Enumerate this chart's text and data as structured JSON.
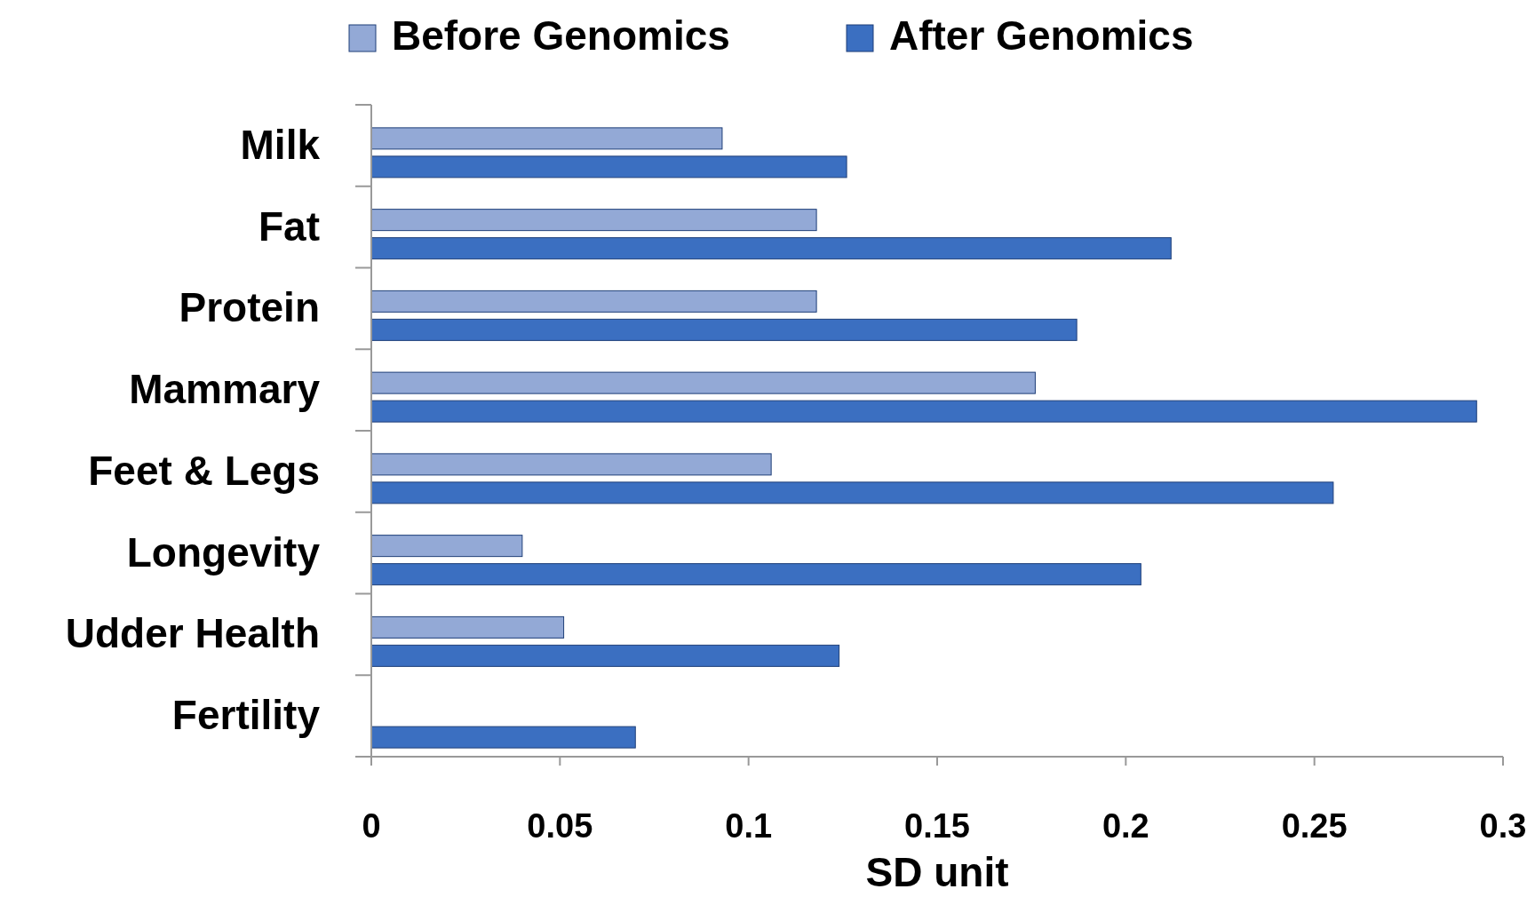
{
  "chart_data": {
    "type": "bar",
    "orientation": "horizontal",
    "xlabel": "SD unit",
    "categories": [
      "Milk",
      "Fat",
      "Protein",
      "Mammary",
      "Feet & Legs",
      "Longevity",
      "Udder Health",
      "Fertility"
    ],
    "series": [
      {
        "name": "Before Genomics",
        "color": "#93a9d6",
        "values": [
          0.093,
          0.118,
          0.118,
          0.176,
          0.106,
          0.04,
          0.051,
          null
        ]
      },
      {
        "name": "After Genomics",
        "color": "#3b6fc1",
        "values": [
          0.126,
          0.212,
          0.187,
          0.293,
          0.255,
          0.204,
          0.124,
          0.07
        ]
      }
    ],
    "xlim": [
      0,
      0.3
    ],
    "xticks": [
      0,
      0.05,
      0.1,
      0.15,
      0.2,
      0.25,
      0.3
    ],
    "grid": false,
    "legend": "top"
  }
}
